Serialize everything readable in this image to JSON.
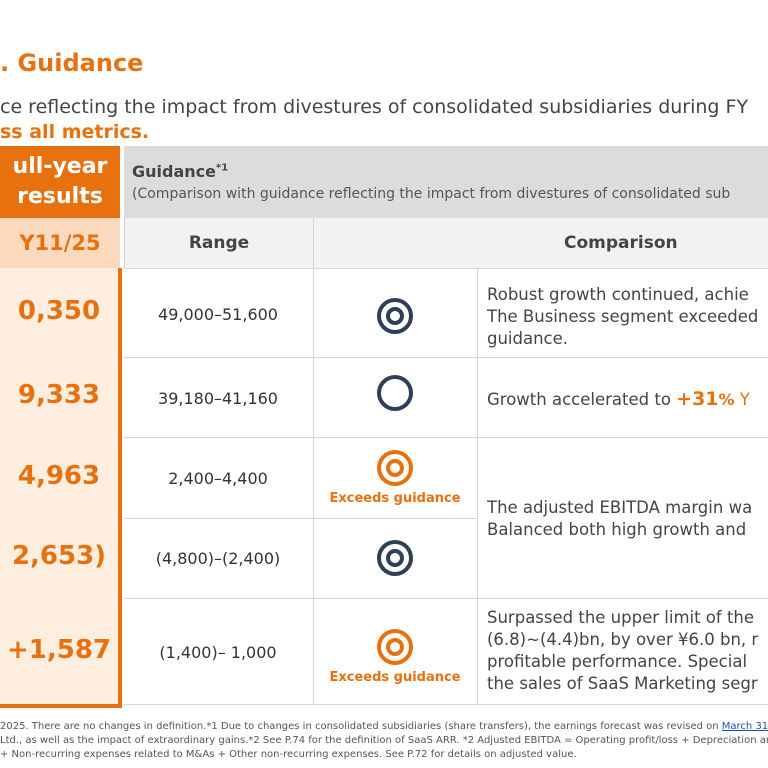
{
  "header": {
    "title": ". Guidance",
    "subtitle_line1": "ce reflecting the impact from divestures of consolidated subsidiaries during FY",
    "subtitle_line2": "ss all metrics."
  },
  "results_column": {
    "header_line1": "ull-year",
    "header_line2": "results",
    "period": "Y11/25",
    "values": [
      "0,350",
      "9,333",
      "4,963",
      "2,653)",
      "+1,587"
    ]
  },
  "guidance": {
    "title": "Guidance",
    "title_note": "*1",
    "subtitle": "(Comparison with guidance reflecting the impact from divestures of consolidated sub",
    "col_range": "Range",
    "col_comparison": "Comparison",
    "exceeds_label": "Exceeds guidance",
    "rows": [
      {
        "range": "49,000–51,600",
        "mark": "double-circle",
        "color": "#2f3f57"
      },
      {
        "range": "39,180–41,160",
        "mark": "circle",
        "color": "#2f3f57"
      },
      {
        "range": "2,400–4,400",
        "mark": "double-circle",
        "color": "#e8710f"
      },
      {
        "range": "(4,800)–(2,400)",
        "mark": "double-circle",
        "color": "#2f3f57"
      },
      {
        "range": "(1,400)– 1,000",
        "mark": "double-circle",
        "color": "#e8710f"
      }
    ]
  },
  "comments": {
    "c1_line1": "Robust growth continued, achie",
    "c1_line2": "The Business segment exceeded",
    "c1_line3": "guidance.",
    "c2_text": "Growth accelerated to ",
    "c2_highlight": "+31",
    "c2_pct": "%",
    "c2_tail": " Y",
    "c3_line1": "The adjusted EBITDA margin wa",
    "c3_line2": "Balanced both high growth and",
    "c4_line1": "Surpassed the upper limit of the",
    "c4_line2": "(6.8)~(4.4)bn,  by over ¥6.0 bn, r",
    "c4_line3": "profitable performance. Special",
    "c4_line4": "the sales of SaaS Marketing segr"
  },
  "footnotes": {
    "line1_pre": " 2025. There are no changes in definition.*1 Due to changes in consolidated subsidiaries (share transfers), the earnings forecast was revised on ",
    "line1_link": "March 31",
    "line2": "Ltd., as well as the impact of extraordinary gains.*2 See P.74 for the definition of SaaS ARR. *2 Adjusted EBITDA = Operating profit/loss + Depreciation an",
    "line3": "+ Non-recurring expenses related to M&As + Other non-recurring expenses.   See P.72 for details on adjusted value."
  },
  "colors": {
    "accent": "#e8710f",
    "navy": "#2f3f57",
    "header_gray": "#dcdcdc"
  }
}
